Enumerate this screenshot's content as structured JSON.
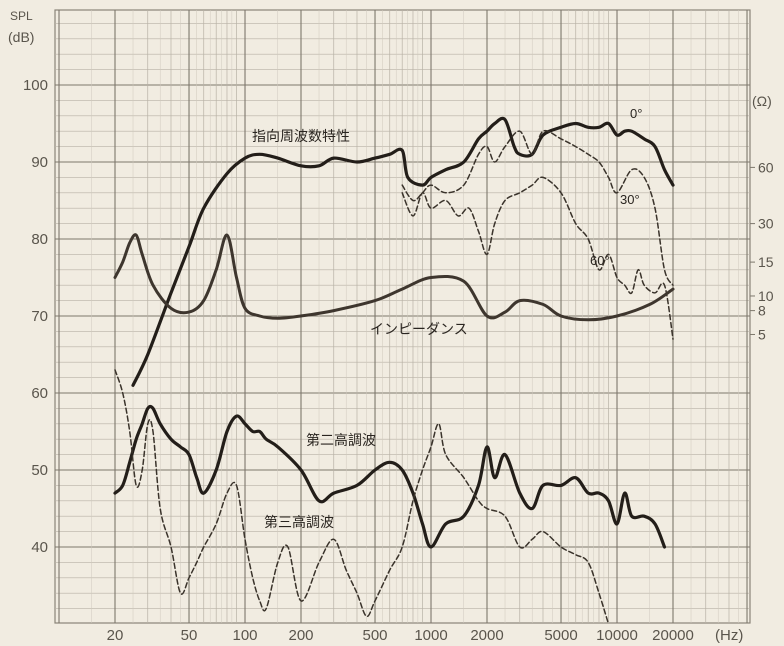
{
  "chart_data": {
    "type": "line",
    "title": "",
    "ylabel_line1": "SPL",
    "ylabel_line2": "(dB)",
    "xunit": "(Hz)",
    "right_unit": "(Ω)",
    "x_scale": "log",
    "xlim": [
      20,
      20000
    ],
    "ylim": [
      30,
      110
    ],
    "grid": true,
    "y_ticks": [
      "40",
      "50",
      "60",
      "70",
      "80",
      "90",
      "100"
    ],
    "x_ticks": [
      {
        "value": 20,
        "label": "20"
      },
      {
        "value": 50,
        "label": "50"
      },
      {
        "value": 100,
        "label": "100"
      },
      {
        "value": 200,
        "label": "200"
      },
      {
        "value": 500,
        "label": "500"
      },
      {
        "value": 1000,
        "label": "1000"
      },
      {
        "value": 2000,
        "label": "2000"
      },
      {
        "value": 5000,
        "label": "5000"
      },
      {
        "value": 10000,
        "label": "10000"
      },
      {
        "value": 20000,
        "label": "20000"
      }
    ],
    "right_ticks": [
      {
        "label": "60",
        "spl": 89.3
      },
      {
        "label": "30",
        "spl": 82.0
      },
      {
        "label": "15",
        "spl": 77.0
      },
      {
        "label": "10",
        "spl": 72.6
      },
      {
        "label": "8",
        "spl": 70.7
      },
      {
        "label": "5",
        "spl": 67.6
      }
    ],
    "annotations": {
      "directivity": "指向周波数特性",
      "deg0": "0°",
      "deg30": "30°",
      "deg60": "60°",
      "impedance": "インピーダンス",
      "second_harmonic": "第二高調波",
      "third_harmonic": "第三高調波"
    },
    "series": [
      {
        "key": "on_axis",
        "style": "solid-thick",
        "x": [
          25,
          30,
          40,
          50,
          60,
          80,
          100,
          120,
          150,
          200,
          250,
          300,
          400,
          500,
          600,
          700,
          750,
          900,
          1000,
          1200,
          1500,
          1800,
          2000,
          2200,
          2500,
          2800,
          3000,
          3500,
          4000,
          5000,
          6000,
          7000,
          8000,
          9000,
          10000,
          11000,
          12000,
          14000,
          16000,
          18000,
          20000
        ],
        "y": [
          61,
          65,
          73,
          79,
          84,
          88.5,
          90.5,
          91,
          90.5,
          89.5,
          89.5,
          90.5,
          90,
          90.5,
          91,
          91.5,
          88,
          87,
          88,
          89,
          90,
          93,
          94,
          95,
          95.5,
          92,
          91,
          91,
          93.5,
          94.5,
          95,
          94.5,
          94.5,
          95,
          93.5,
          94,
          94,
          93,
          92,
          89,
          87
        ]
      },
      {
        "key": "deg30",
        "style": "dashed",
        "x": [
          700,
          800,
          900,
          1000,
          1200,
          1500,
          1800,
          2000,
          2200,
          2500,
          3000,
          3500,
          4000,
          5000,
          6000,
          7000,
          8000,
          9000,
          10000,
          12000,
          14000,
          16000,
          18000,
          20000
        ],
        "y": [
          87,
          85,
          86,
          87,
          86,
          87,
          91,
          92,
          90,
          92,
          94,
          91,
          94,
          93,
          92,
          91,
          90,
          88,
          86,
          89,
          88,
          84,
          76,
          74
        ]
      },
      {
        "key": "deg60",
        "style": "dashed",
        "x": [
          700,
          800,
          900,
          1000,
          1200,
          1400,
          1600,
          1800,
          2000,
          2200,
          2500,
          3000,
          3500,
          4000,
          5000,
          6000,
          7000,
          8000,
          9000,
          10000,
          11000,
          12000,
          13000,
          14000,
          16000,
          18000,
          20000
        ],
        "y": [
          86,
          83,
          86,
          84,
          85,
          83,
          84,
          81,
          78,
          82,
          85,
          86,
          87,
          88,
          86,
          82,
          80,
          76,
          78,
          75,
          74,
          73,
          76,
          74,
          73,
          74,
          67
        ]
      },
      {
        "key": "impedance",
        "style": "solid",
        "x": [
          20,
          22,
          24,
          26,
          28,
          32,
          40,
          50,
          60,
          70,
          80,
          90,
          100,
          120,
          150,
          200,
          300,
          500,
          700,
          1000,
          1500,
          2000,
          2500,
          3000,
          4000,
          5000,
          7000,
          10000,
          15000,
          20000
        ],
        "y": [
          75,
          77,
          79.5,
          80.5,
          78,
          74,
          71,
          70.5,
          72,
          76,
          80.5,
          75,
          71,
          70,
          69.7,
          70,
          70.7,
          72,
          73.5,
          75,
          74.5,
          70,
          70.5,
          72,
          71.5,
          70,
          69.5,
          70,
          71.5,
          73.5
        ]
      },
      {
        "key": "second_harmonic",
        "style": "solid-thick",
        "x": [
          20,
          22,
          24,
          26,
          28,
          30,
          32,
          35,
          40,
          45,
          50,
          55,
          60,
          70,
          80,
          90,
          100,
          110,
          120,
          130,
          150,
          200,
          250,
          300,
          400,
          500,
          600,
          700,
          800,
          900,
          1000,
          1200,
          1500,
          1800,
          2000,
          2200,
          2500,
          3000,
          3500,
          4000,
          5000,
          6000,
          7000,
          8000,
          9000,
          10000,
          11000,
          12000,
          14000,
          16000,
          18000
        ],
        "y": [
          47,
          48,
          51,
          54,
          56,
          58,
          58,
          56,
          54,
          53,
          52,
          49,
          47,
          50,
          55,
          57,
          56,
          55,
          55,
          54,
          53,
          50,
          46,
          47,
          48,
          50,
          51,
          50,
          47,
          43,
          40,
          43,
          44,
          48,
          53,
          49,
          52,
          47,
          45,
          48,
          48,
          49,
          47,
          47,
          46,
          43,
          47,
          44,
          44,
          43,
          40
        ]
      },
      {
        "key": "third_harmonic",
        "style": "dashed",
        "x": [
          20,
          22,
          24,
          26,
          28,
          30,
          32,
          35,
          40,
          45,
          50,
          55,
          60,
          70,
          80,
          90,
          100,
          110,
          120,
          130,
          150,
          170,
          200,
          250,
          300,
          350,
          400,
          450,
          500,
          600,
          700,
          800,
          900,
          1000,
          1100,
          1200,
          1500,
          1800,
          2000,
          2500,
          3000,
          3500,
          4000,
          5000,
          6000,
          7000,
          8000,
          9000
        ],
        "y": [
          63,
          60,
          55,
          48,
          50,
          56,
          55,
          45,
          40,
          34,
          36,
          38,
          40,
          43,
          47,
          48,
          41,
          36,
          33,
          32,
          38,
          40,
          33,
          38,
          41,
          37,
          34,
          31,
          33,
          37,
          40,
          46,
          50,
          53,
          56,
          52,
          49,
          46,
          45,
          44,
          40,
          41,
          42,
          40,
          39,
          38,
          34,
          30
        ]
      }
    ]
  }
}
